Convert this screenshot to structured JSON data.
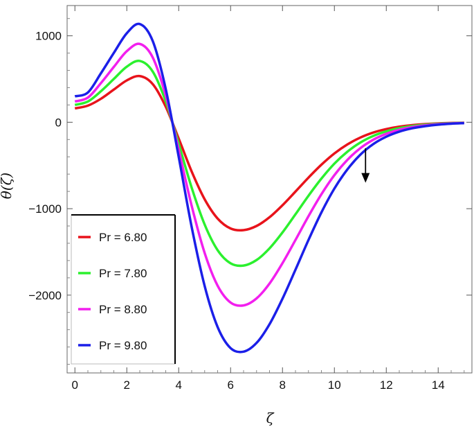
{
  "chart_data": {
    "type": "line",
    "xlabel": "ζ",
    "ylabel": "θ(ζ)",
    "xlim": [
      -0.3,
      15.3
    ],
    "ylim": [
      -2900,
      1350
    ],
    "x_ticks": [
      0,
      2,
      4,
      6,
      8,
      10,
      12,
      14
    ],
    "x_tick_labels": [
      "0",
      "2",
      "4",
      "6",
      "8",
      "10",
      "12",
      "14"
    ],
    "y_ticks": [
      1000,
      0,
      -1000,
      -2000
    ],
    "y_tick_labels": [
      "1000",
      "0",
      "−1000",
      "−2000"
    ],
    "grid": false,
    "legend_position": "bottom-left",
    "arrow_annotation": {
      "x": 11.2,
      "y_from": -300,
      "y_to": -700
    },
    "x": [
      0,
      0.5,
      1,
      1.5,
      2,
      2.5,
      3,
      3.5,
      4,
      4.5,
      5,
      5.5,
      6,
      6.5,
      7,
      7.5,
      8,
      8.5,
      9,
      9.5,
      10,
      10.5,
      11,
      11.5,
      12,
      12.5,
      13,
      13.5,
      14,
      14.5,
      15
    ],
    "series": [
      {
        "name": "Pr = 6.80",
        "color": "#e8131b",
        "values": [
          160,
          192,
          271,
          378,
          484,
          534,
          441,
          180,
          -189,
          -570,
          -891,
          -1114,
          -1229,
          -1248,
          -1200,
          -1099,
          -960,
          -802,
          -641,
          -491,
          -361,
          -257,
          -177,
          -119,
          -79,
          -51,
          -33,
          -21,
          -13,
          -8,
          -5
        ]
      },
      {
        "name": "Pr = 7.80",
        "color": "#2bf02e",
        "values": [
          200,
          240,
          358,
          501,
          643,
          709,
          586,
          241,
          -250,
          -757,
          -1183,
          -1480,
          -1632,
          -1658,
          -1594,
          -1459,
          -1275,
          -1065,
          -851,
          -652,
          -479,
          -341,
          -235,
          -158,
          -105,
          -68,
          -44,
          -28,
          -17,
          -11,
          -6
        ]
      },
      {
        "name": "Pr = 8.80",
        "color": "#f21fee",
        "values": [
          240,
          285,
          452,
          640,
          822,
          906,
          749,
          308,
          -320,
          -967,
          -1512,
          -1891,
          -2086,
          -2119,
          -2038,
          -1866,
          -1630,
          -1362,
          -1088,
          -833,
          -612,
          -436,
          -300,
          -202,
          -134,
          -87,
          -56,
          -36,
          -22,
          -14,
          -8
        ]
      },
      {
        "name": "Pr = 9.80",
        "color": "#1b1fe8",
        "values": [
          300,
          344,
          565,
          802,
          1030,
          1136,
          939,
          386,
          -401,
          -1212,
          -1894,
          -2369,
          -2613,
          -2654,
          -2553,
          -2337,
          -2041,
          -1706,
          -1363,
          -1043,
          -767,
          -546,
          -375,
          -252,
          -167,
          -109,
          -70,
          -45,
          -28,
          -17,
          -10
        ]
      }
    ]
  }
}
